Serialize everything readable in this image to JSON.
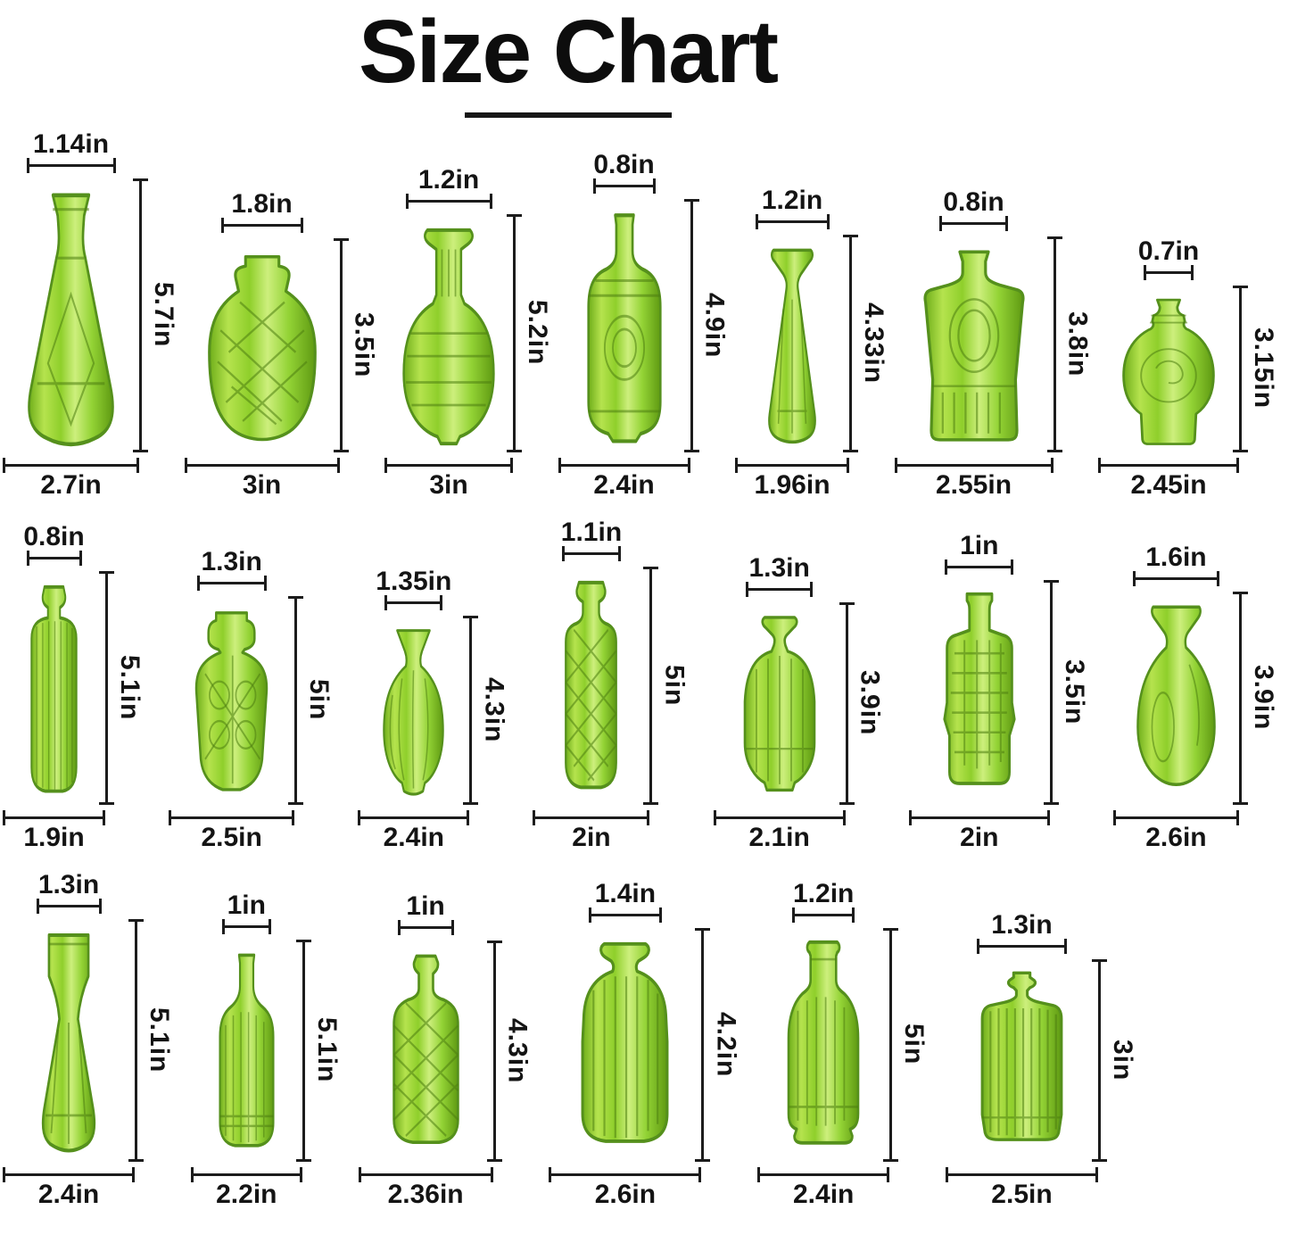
{
  "title": "Size Chart",
  "units": "in",
  "rows": [
    {
      "vases": [
        {
          "name": "faceted-taper-decanter",
          "style": "facetedTaper",
          "top": "1.14in",
          "height": "5.7in",
          "bottom": "2.7in"
        },
        {
          "name": "quilted-squat-bottle",
          "style": "quiltedSquat",
          "top": "1.8in",
          "height": "3.5in",
          "bottom": "3in"
        },
        {
          "name": "beaded-round-vase",
          "style": "beadedRound",
          "top": "1.2in",
          "height": "5.2in",
          "bottom": "3in"
        },
        {
          "name": "medallion-cylinder-bottle",
          "style": "medallionCyl",
          "top": "0.8in",
          "height": "4.9in",
          "bottom": "2.4in"
        },
        {
          "name": "waisted-taper-vase",
          "style": "waistedTaper",
          "top": "1.2in",
          "height": "4.33in",
          "bottom": "1.96in"
        },
        {
          "name": "square-medallion-decanter",
          "style": "squareMedallion",
          "top": "0.8in",
          "height": "3.8in",
          "bottom": "2.55in"
        },
        {
          "name": "round-medallion-bottle",
          "style": "roundMedallion",
          "top": "0.7in",
          "height": "3.15in",
          "bottom": "2.45in"
        }
      ]
    },
    {
      "vases": [
        {
          "name": "ribbed-cylinder-vase",
          "style": "ribbedCylinder",
          "top": "0.8in",
          "height": "5.1in",
          "bottom": "1.9in"
        },
        {
          "name": "pressed-floral-urn",
          "style": "pressedUrn",
          "top": "1.3in",
          "height": "5in",
          "bottom": "2.5in"
        },
        {
          "name": "ribbed-teardrop-vase",
          "style": "ribbedTeardrop",
          "top": "1.35in",
          "height": "4.3in",
          "bottom": "2.4in"
        },
        {
          "name": "lattice-cylinder-bottle",
          "style": "latticeCylinder",
          "top": "1.1in",
          "height": "5in",
          "bottom": "2in"
        },
        {
          "name": "ribbed-taper-bud-vase",
          "style": "ribbedBud",
          "top": "1.3in",
          "height": "3.9in",
          "bottom": "2.1in"
        },
        {
          "name": "studded-square-bottle",
          "style": "studdedSquare",
          "top": "1in",
          "height": "3.5in",
          "bottom": "2in"
        },
        {
          "name": "smooth-teardrop-vase",
          "style": "smoothTeardrop",
          "top": "1.6in",
          "height": "3.9in",
          "bottom": "2.6in"
        }
      ]
    },
    {
      "vases": [
        {
          "name": "flared-carafe",
          "style": "flaredCarafe",
          "top": "1.3in",
          "height": "5.1in",
          "bottom": "2.4in"
        },
        {
          "name": "ribbed-shoulder-bottle",
          "style": "ribbedShoulder",
          "top": "1in",
          "height": "5.1in",
          "bottom": "2.2in"
        },
        {
          "name": "quilted-squat-jar",
          "style": "quiltedJar",
          "top": "1in",
          "height": "4.3in",
          "bottom": "2.36in"
        },
        {
          "name": "ribbed-wide-jar",
          "style": "ribbedWideJar",
          "top": "1.4in",
          "height": "4.2in",
          "bottom": "2.6in"
        },
        {
          "name": "ribbed-bell-bottle",
          "style": "ribbedBell",
          "top": "1.2in",
          "height": "5in",
          "bottom": "2.4in"
        },
        {
          "name": "ribbed-square-flask",
          "style": "ribbedFlask",
          "top": "1.3in",
          "height": "3in",
          "bottom": "2.5in"
        }
      ]
    }
  ]
}
